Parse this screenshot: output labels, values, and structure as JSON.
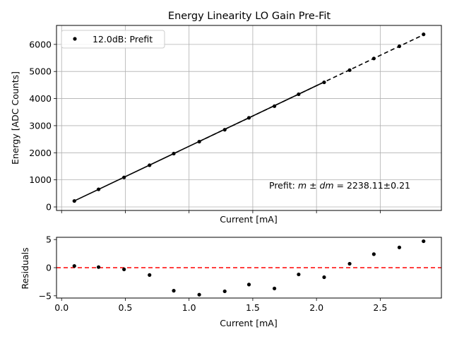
{
  "chart_data": [
    {
      "type": "scatter",
      "title": "Energy Linearity LO Gain Pre-Fit",
      "xlabel": "Current [mA]",
      "ylabel": "Energy [ADC Counts]",
      "xlim": [
        -0.04,
        2.98
      ],
      "ylim": [
        -130,
        6700
      ],
      "x_ticks": [
        0.0,
        0.5,
        1.0,
        1.5,
        2.0,
        2.5
      ],
      "y_ticks": [
        0,
        1000,
        2000,
        3000,
        4000,
        5000,
        6000
      ],
      "grid": true,
      "legend": {
        "placement": "top-left",
        "entries": [
          "12.0dB: Prefit"
        ]
      },
      "annotation": {
        "prefix": "Prefit: ",
        "math": "m ± dm",
        "value": " = 2238.11±0.21"
      },
      "series": [
        {
          "name": "12.0dB: Prefit",
          "marker": "dot",
          "color": "#000000",
          "x": [
            0.1,
            0.29,
            0.49,
            0.69,
            0.88,
            1.08,
            1.28,
            1.47,
            1.67,
            1.86,
            2.06,
            2.26,
            2.45,
            2.65,
            2.84
          ],
          "y": [
            220,
            650,
            1090,
            1540,
            1970,
            2410,
            2850,
            3290,
            3720,
            4160,
            4600,
            5050,
            5480,
            5930,
            6370
          ]
        }
      ],
      "fit": {
        "slope": 2238.11,
        "intercept": 0,
        "color": "#000000",
        "solid_range": [
          0.1,
          2.06
        ],
        "dashed_range": [
          1.08,
          2.84
        ]
      }
    },
    {
      "type": "scatter",
      "title": "",
      "xlabel": "Current [mA]",
      "ylabel": "Residuals",
      "xlim": [
        -0.04,
        2.98
      ],
      "ylim": [
        -5.4,
        5.4
      ],
      "x_ticks": [
        0.0,
        0.5,
        1.0,
        1.5,
        2.0,
        2.5
      ],
      "x_tick_labels": [
        "0.0",
        "0.5",
        "1.0",
        "1.5",
        "2.0",
        "2.5"
      ],
      "y_ticks": [
        -5,
        0,
        5
      ],
      "y_tick_labels": [
        "−5",
        "0",
        "5"
      ],
      "grid": false,
      "reference_line": {
        "y": 0,
        "color": "#ff0000",
        "style": "dashed"
      },
      "series": [
        {
          "marker": "dot",
          "color": "#000000",
          "x": [
            0.1,
            0.29,
            0.49,
            0.69,
            0.88,
            1.08,
            1.28,
            1.47,
            1.67,
            1.86,
            2.06,
            2.26,
            2.45,
            2.65,
            2.84
          ],
          "y": [
            0.3,
            0.1,
            -0.3,
            -1.3,
            -4.1,
            -4.8,
            -4.2,
            -3.0,
            -3.7,
            -1.2,
            -1.7,
            0.7,
            2.4,
            3.6,
            4.7
          ]
        }
      ]
    }
  ]
}
